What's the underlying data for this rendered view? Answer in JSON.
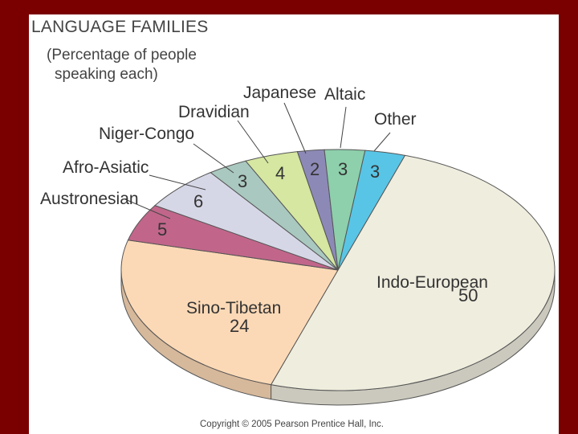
{
  "chart_data": {
    "type": "pie",
    "title": "LANGUAGE FAMILIES",
    "subtitle_line1": "(Percentage of people",
    "subtitle_line2": "speaking each)",
    "slices": [
      {
        "label": "Indo-European",
        "value": 50,
        "value_label": "50",
        "color": "#efedde"
      },
      {
        "label": "Sino-Tibetan",
        "value": 24,
        "value_label": "24",
        "color": "#fcd9b6"
      },
      {
        "label": "Austronesian",
        "value": 5,
        "value_label": "5",
        "color": "#c1668a"
      },
      {
        "label": "Afro-Asiatic",
        "value": 6,
        "value_label": "6",
        "color": "#d6d7e6"
      },
      {
        "label": "Niger-Congo",
        "value": 3,
        "value_label": "3",
        "color": "#a9c8bf"
      },
      {
        "label": "Dravidian",
        "value": 4,
        "value_label": "4",
        "color": "#d5e7a0"
      },
      {
        "label": "Japanese",
        "value": 2,
        "value_label": "2",
        "color": "#8d89b7"
      },
      {
        "label": "Altaic",
        "value": 3,
        "value_label": "3",
        "color": "#8ecfac"
      },
      {
        "label": "Other",
        "value": 3,
        "value_label": "3",
        "color": "#58c5e6"
      }
    ]
  },
  "copyright": "Copyright © 2005 Pearson Prentice Hall, Inc."
}
